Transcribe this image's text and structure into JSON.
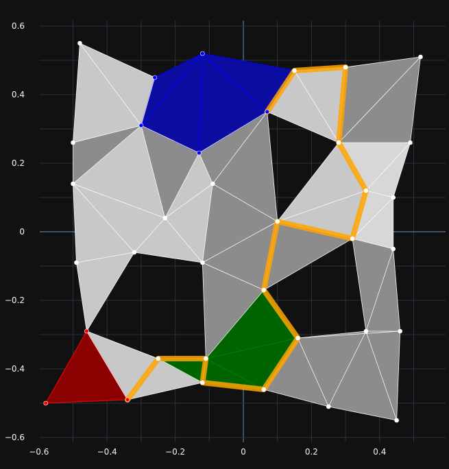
{
  "chart_data": {
    "type": "mesh",
    "xlim": [
      -0.6,
      0.6
    ],
    "ylim": [
      -0.6,
      0.6
    ],
    "grid": true,
    "x_ticks": [
      -0.6,
      -0.4,
      -0.2,
      0,
      0.2,
      0.4
    ],
    "x_tick_labels": [
      "−0.6",
      "−0.4",
      "−0.2",
      "0",
      "0.2",
      "0.4"
    ],
    "y_ticks": [
      -0.6,
      -0.4,
      -0.2,
      0,
      0.2,
      0.4,
      0.6
    ],
    "y_tick_labels": [
      "−0.6",
      "−0.4",
      "−0.2",
      "0",
      "0.2",
      "0.4",
      "0.6"
    ],
    "colors": {
      "background": "#111111",
      "grid": "#283442",
      "zeroline": "#506784",
      "light_face": "#c8c8c8",
      "mid_face": "#d7d7d7",
      "dark_face": "#8c8c8c",
      "edge": "#ffffff",
      "blue": "#0000ff",
      "blue_face": "#0c0ca0",
      "green": "#008000",
      "green_face": "#006400",
      "red": "#ff0000",
      "red_face": "#8b0000",
      "path": "#ffa500"
    },
    "vertices": [
      [
        -0.48,
        0.55
      ],
      [
        -0.26,
        0.45
      ],
      [
        -0.12,
        0.52
      ],
      [
        0.15,
        0.47
      ],
      [
        0.3,
        0.48
      ],
      [
        0.52,
        0.51
      ],
      [
        -0.5,
        0.26
      ],
      [
        -0.3,
        0.31
      ],
      [
        -0.13,
        0.23
      ],
      [
        0.07,
        0.35
      ],
      [
        0.28,
        0.26
      ],
      [
        0.49,
        0.26
      ],
      [
        -0.5,
        0.14
      ],
      [
        -0.09,
        0.14
      ],
      [
        0.36,
        0.12
      ],
      [
        0.44,
        0.1
      ],
      [
        -0.23,
        0.04
      ],
      [
        0.1,
        0.03
      ],
      [
        0.32,
        -0.02
      ],
      [
        -0.49,
        -0.09
      ],
      [
        -0.32,
        -0.06
      ],
      [
        -0.12,
        -0.09
      ],
      [
        0.44,
        -0.05
      ],
      [
        0.06,
        -0.17
      ],
      [
        -0.46,
        -0.29
      ],
      [
        0.36,
        -0.29
      ],
      [
        0.46,
        -0.29
      ],
      [
        0.16,
        -0.31
      ],
      [
        -0.25,
        -0.37
      ],
      [
        -0.11,
        -0.37
      ],
      [
        -0.58,
        -0.5
      ],
      [
        -0.34,
        -0.49
      ],
      [
        -0.12,
        -0.44
      ],
      [
        0.06,
        -0.46
      ],
      [
        0.25,
        -0.51
      ],
      [
        0.45,
        -0.55
      ]
    ],
    "light_triangles": [
      [
        0,
        6,
        7
      ],
      [
        0,
        1,
        7
      ],
      [
        7,
        12,
        6
      ],
      [
        12,
        16,
        7
      ],
      [
        12,
        19,
        20
      ],
      [
        12,
        16,
        20
      ],
      [
        16,
        20,
        21
      ],
      [
        16,
        13,
        21
      ],
      [
        7,
        16,
        8
      ],
      [
        8,
        16,
        13
      ],
      [
        9,
        3,
        10
      ],
      [
        3,
        4,
        10
      ],
      [
        10,
        14,
        17
      ],
      [
        14,
        17,
        18
      ],
      [
        31,
        28,
        32
      ],
      [
        29,
        28,
        32
      ],
      [
        19,
        24,
        20
      ],
      [
        24,
        31,
        28
      ]
    ],
    "mid_triangles": [
      [
        10,
        11,
        14
      ],
      [
        11,
        14,
        15
      ],
      [
        14,
        15,
        18
      ],
      [
        15,
        18,
        22
      ]
    ],
    "dark_triangles": [
      [
        4,
        5,
        10
      ],
      [
        5,
        10,
        11
      ],
      [
        6,
        7,
        12
      ],
      [
        7,
        8,
        16
      ],
      [
        8,
        13,
        9
      ],
      [
        13,
        9,
        17
      ],
      [
        13,
        17,
        21
      ],
      [
        21,
        17,
        23
      ],
      [
        17,
        18,
        23
      ],
      [
        21,
        23,
        29
      ],
      [
        18,
        22,
        25
      ],
      [
        22,
        25,
        26
      ],
      [
        27,
        25,
        26
      ],
      [
        27,
        33,
        34
      ],
      [
        27,
        25,
        34
      ],
      [
        25,
        26,
        35
      ],
      [
        34,
        25,
        35
      ]
    ],
    "blue_cells": [
      [
        7,
        1,
        2
      ],
      [
        7,
        2,
        8
      ],
      [
        2,
        9,
        8
      ],
      [
        2,
        3,
        9
      ]
    ],
    "green_cells": [
      [
        23,
        27,
        29
      ],
      [
        27,
        33,
        29
      ],
      [
        29,
        33,
        32
      ],
      [
        29,
        28,
        32
      ]
    ],
    "red_cells": [
      [
        24,
        30,
        31
      ]
    ],
    "orange_path": [
      31,
      28,
      29,
      32,
      33,
      27,
      23,
      17,
      18,
      14,
      10,
      4,
      3,
      9
    ],
    "red_points": [
      24,
      30,
      31
    ],
    "blue_points": [
      1,
      2,
      7,
      8,
      9
    ]
  }
}
